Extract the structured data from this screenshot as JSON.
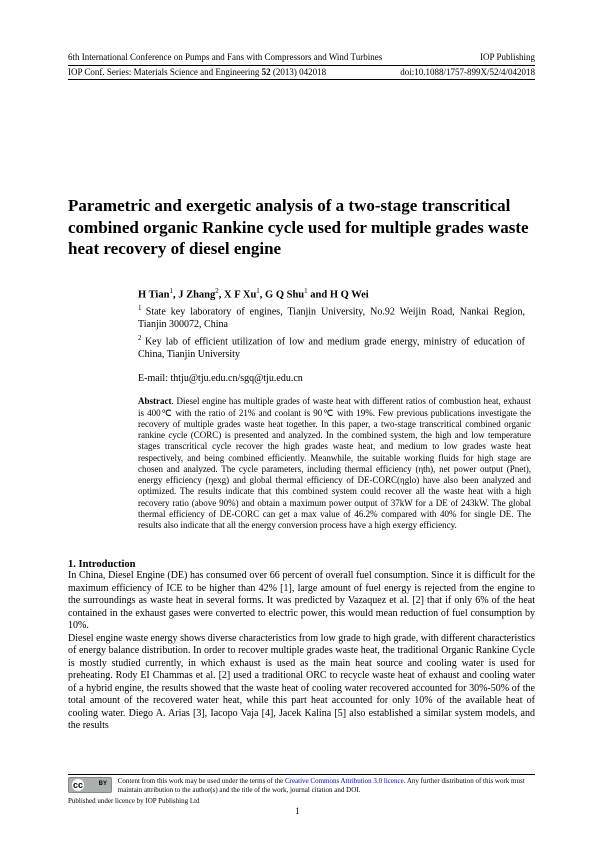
{
  "header": {
    "conf": "6th International Conference on Pumps and Fans with Compressors and Wind Turbines",
    "publisher": "IOP Publishing",
    "series": "IOP Conf. Series: Materials Science and Engineering",
    "vol": "52",
    "year_issue": "(2013) 042018",
    "doi": "doi:10.1088/1757-899X/52/4/042018"
  },
  "title": "Parametric and exergetic analysis of a two-stage transcritical combined organic Rankine cycle used for multiple grades waste heat recovery of diesel engine",
  "authors": "H Tian",
  "authors_rest": ", J Zhang",
  "authors_rest2": ", X F Xu",
  "authors_rest3": ", G Q Shu",
  "authors_rest4": " and H Q Wei",
  "affil1": "State key laboratory of engines, Tianjin University, No.92 Weijin Road, Nankai Region, Tianjin 300072, China",
  "affil2": "Key lab of efficient utilization of low and medium grade energy, ministry of education of China, Tianjin University",
  "email": "E-mail: thtju@tju.edu.cn/sgq@tju.edu.cn",
  "abstract_label": "Abstract",
  "abstract": ". Diesel engine has multiple grades of waste heat with different ratios of combustion heat, exhaust is 400℃ with the ratio of 21% and coolant is 90℃ with 19%. Few previous publications investigate the recovery of multiple grades waste heat together. In this paper, a two-stage transcritical combined organic rankine cycle (CORC) is presented and analyzed. In the combined system, the high and low temperature stages transcritical cycle recover the high grades waste heat, and medium to low grades waste heat respectively, and being combined efficiently. Meanwhile, the suitable working fluids for high stage are chosen and analyzed. The cycle parameters, including thermal efficiency (ηth), net power output (Pnet), energy efficiency (ηexg) and global thermal efficiency of DE-CORC(ηglo) have also been analyzed and optimized. The results indicate that this combined system could recover all the waste heat with a high recovery ratio (above 90%) and obtain a maximum power output of 37kW for a DE of 243kW. The global thermal efficiency of DE-CORC can get a max value of 46.2% compared with 40% for single DE. The results also indicate that all the energy conversion process have a high exergy efficiency.",
  "section1_heading": "1.  Introduction",
  "intro_p1": "In China, Diesel Engine (DE) has consumed over 66 percent of overall fuel consumption. Since it is difficult for the maximum efficiency of ICE to be higher than 42% [1], large amount of fuel energy is rejected from the engine to the surroundings as waste heat in several forms. It was predicted by Vazaquez et al. [2] that if only 6% of the heat contained in the exhaust gases were converted to electric power, this would mean reduction of fuel consumption by 10%.",
  "intro_p2": "Diesel engine waste energy shows diverse characteristics from low grade to high grade, with different characteristics of energy balance distribution. In order to recover multiple grades waste heat, the traditional Organic Rankine Cycle is mostly studied currently, in which exhaust is used as the main heat source and cooling water is used for preheating. Rody EI Chammas et al. [2] used a traditional ORC to recycle waste heat of exhaust and cooling water of a hybrid engine, the results showed that the waste heat of cooling water recovered accounted for 30%-50% of the total amount of the recovered water heat, while this part heat accounted for only 10% of the available heat of cooling water. Diego A. Arias [3], Iacopo Vaja [4], Jacek Kalina [5] also established a similar system models, and the results",
  "footer": {
    "license_pre": "Content from this work may be used under the terms of the ",
    "license_link": "Creative Commons Attribution 3.0 licence",
    "license_post": ". Any further distribution of this work must maintain attribution to the author(s) and the title of the work, journal citation and DOI.",
    "pub": "Published under licence by IOP Publishing Ltd"
  },
  "page_num": "1"
}
